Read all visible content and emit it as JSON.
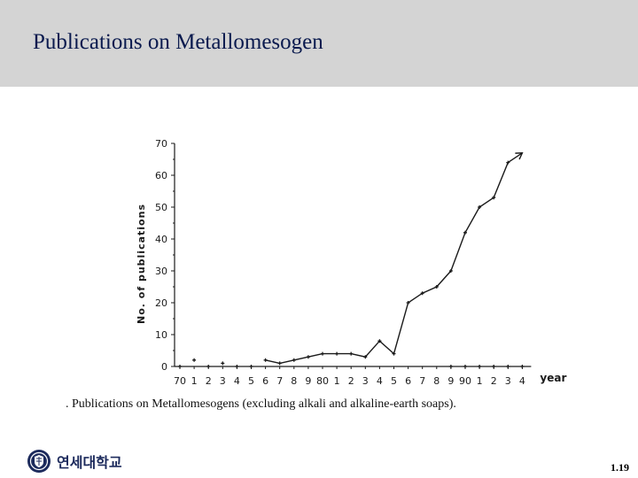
{
  "slide": {
    "title": "Publications on Metallomesogen",
    "caption": ". Publications on Metallomesogens (excluding alkali and alkaline-earth soaps).",
    "page_number": "1.19",
    "logo_text": "연세대학교"
  },
  "colors": {
    "title_bar": "#d4d4d4",
    "title_text": "#0a1a4e",
    "chart_ink": "#1a1a1a",
    "logo": "#1c2a5c"
  },
  "chart_data": {
    "type": "line",
    "title": "",
    "xlabel": "year",
    "ylabel": "No. of publications",
    "ylim": [
      0,
      70
    ],
    "yticks": [
      0,
      10,
      20,
      30,
      40,
      50,
      60,
      70
    ],
    "xtick_labels": [
      "70",
      "1",
      "2",
      "3",
      "4",
      "5",
      "6",
      "7",
      "8",
      "9",
      "80",
      "1",
      "2",
      "3",
      "4",
      "5",
      "6",
      "7",
      "8",
      "9",
      "90",
      "1",
      "2",
      "3",
      "4"
    ],
    "x": [
      1970,
      1971,
      1972,
      1973,
      1974,
      1975,
      1976,
      1977,
      1978,
      1979,
      1980,
      1981,
      1982,
      1983,
      1984,
      1985,
      1986,
      1987,
      1988,
      1989,
      1990,
      1991,
      1992,
      1993,
      1994
    ],
    "main_series": {
      "x": [
        1976,
        1977,
        1978,
        1979,
        1980,
        1981,
        1982,
        1983,
        1984,
        1985,
        1986,
        1987,
        1988,
        1989,
        1990,
        1991,
        1992,
        1993,
        1994
      ],
      "y": [
        2,
        1,
        2,
        3,
        4,
        4,
        4,
        3,
        8,
        4,
        20,
        23,
        25,
        30,
        42,
        50,
        53,
        64,
        67
      ]
    },
    "early_points": {
      "x": [
        1971,
        1973
      ],
      "y": [
        2,
        1
      ]
    },
    "baseline_points": {
      "x": [
        1970,
        1972,
        1974,
        1975,
        1989,
        1990,
        1991,
        1992,
        1993,
        1994
      ],
      "y": [
        0,
        0,
        0,
        0,
        0,
        0,
        0,
        0,
        0,
        0
      ]
    },
    "grid": false,
    "legend": "none"
  }
}
